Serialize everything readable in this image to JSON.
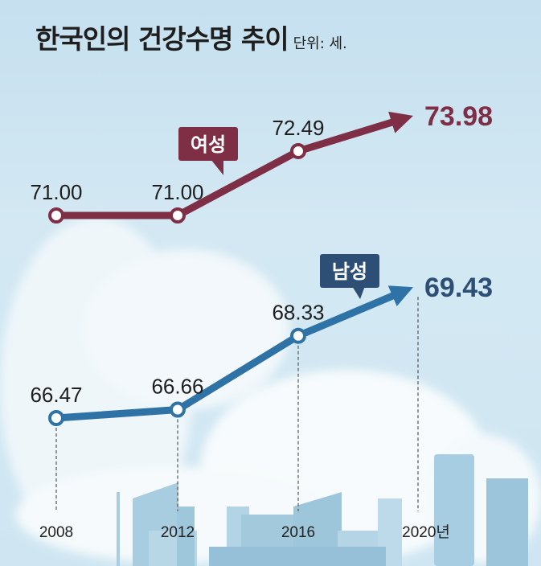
{
  "chart_data": {
    "type": "line",
    "title": "한국인의 건강수명 추이",
    "unit_label": "단위: 세.",
    "x": [
      "2008",
      "2012",
      "2016",
      "2020년"
    ],
    "series": [
      {
        "name": "여성",
        "values": [
          71.0,
          71.0,
          72.49,
          73.98
        ],
        "labels": [
          "71.00",
          "71.00",
          "72.49",
          "73.98"
        ],
        "color": "#7e2f45"
      },
      {
        "name": "남성",
        "values": [
          66.47,
          66.66,
          68.33,
          69.43
        ],
        "labels": [
          "66.47",
          "66.66",
          "68.33",
          "69.43"
        ],
        "color": "#2f73a6"
      }
    ],
    "label_box_colors": [
      "#7e2f45",
      "#2d4f75"
    ],
    "male_final_color": "#2d4f75",
    "grid": false,
    "legend": "inline callouts"
  }
}
